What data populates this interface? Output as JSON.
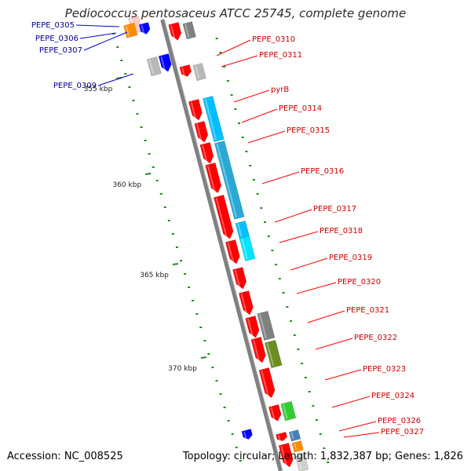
{
  "title": "Pediococcus pentosaceus ATCC 25745, complete genome",
  "footer": {
    "accession": "Accession: NC_008525",
    "summary": "Topology: circular; Length: 1,832,387 bp; Genes: 1,826"
  },
  "ticks": [
    "355 kbp",
    "360 kbp",
    "365 kbp",
    "370 kbp"
  ],
  "labels_left": [
    "PEPE_0305",
    "PEPE_0306",
    "PEPE_0307",
    "PEPE_0309"
  ],
  "labels_right": [
    "PEPE_0310",
    "PEPE_0311",
    "pyrB",
    "PEPE_0314",
    "PEPE_0315",
    "PEPE_0316",
    "PEPE_0317",
    "PEPE_0318",
    "PEPE_0319",
    "PEPE_0320",
    "PEPE_0321",
    "PEPE_0322",
    "PEPE_0323",
    "PEPE_0324",
    "PEPE_0326",
    "PEPE_0327"
  ],
  "colors": {
    "cds": "#ff0000",
    "rna": "#00bfff",
    "left_cds": "#0000ff",
    "orange": "#ff8c00",
    "gray": "#808080",
    "olive": "#6b8e23",
    "green": "#32cd32",
    "label_red": "#cc0000",
    "label_blue": "#00008b",
    "tick": "#228b22"
  }
}
